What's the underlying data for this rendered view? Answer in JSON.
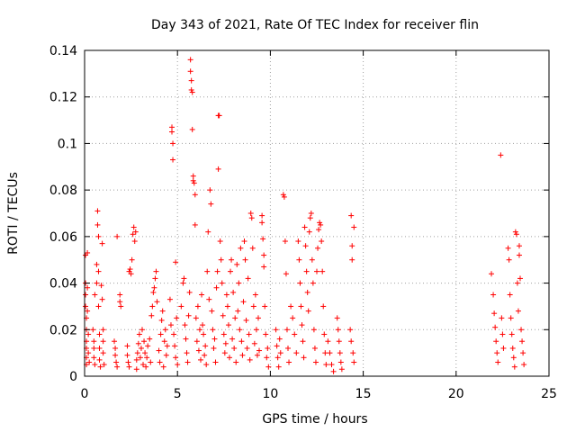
{
  "chart_data": {
    "type": "scatter",
    "title": "Day 343 of 2021, Rate Of TEC Index for receiver flin",
    "xlabel": "GPS time / hours",
    "ylabel": "ROTI / TECUs",
    "xlim": [
      0,
      25
    ],
    "ylim": [
      0,
      0.14
    ],
    "xticks": [
      "0",
      "5",
      "10",
      "15",
      "20",
      "25"
    ],
    "yticks": [
      "0",
      "0.02",
      "0.04",
      "0.06",
      "0.08",
      "0.1",
      "0.12",
      "0.14"
    ],
    "grid": true,
    "marker": "+",
    "color": "#ff0000",
    "series": [
      {
        "points": [
          [
            0.05,
            0.052
          ],
          [
            0.05,
            0.04
          ],
          [
            0.05,
            0.035
          ],
          [
            0.05,
            0.03
          ],
          [
            0.1,
            0.025
          ],
          [
            0.1,
            0.02
          ],
          [
            0.1,
            0.015
          ],
          [
            0.1,
            0.012
          ],
          [
            0.1,
            0.008
          ],
          [
            0.1,
            0.005
          ],
          [
            0.15,
            0.053
          ],
          [
            0.15,
            0.038
          ],
          [
            0.15,
            0.028
          ],
          [
            0.2,
            0.018
          ],
          [
            0.2,
            0.01
          ],
          [
            0.25,
            0.006
          ],
          [
            0.45,
            0.02
          ],
          [
            0.5,
            0.015
          ],
          [
            0.5,
            0.012
          ],
          [
            0.5,
            0.008
          ],
          [
            0.55,
            0.005
          ],
          [
            0.55,
            0.035
          ],
          [
            0.65,
            0.048
          ],
          [
            0.65,
            0.04
          ],
          [
            0.7,
            0.071
          ],
          [
            0.7,
            0.065
          ],
          [
            0.75,
            0.06
          ],
          [
            0.75,
            0.045
          ],
          [
            0.75,
            0.03
          ],
          [
            0.8,
            0.018
          ],
          [
            0.8,
            0.012
          ],
          [
            0.8,
            0.007
          ],
          [
            0.85,
            0.004
          ],
          [
            0.9,
            0.039
          ],
          [
            0.95,
            0.057
          ],
          [
            0.95,
            0.033
          ],
          [
            1.0,
            0.02
          ],
          [
            1.0,
            0.015
          ],
          [
            1.0,
            0.01
          ],
          [
            1.05,
            0.005
          ],
          [
            1.6,
            0.015
          ],
          [
            1.65,
            0.012
          ],
          [
            1.65,
            0.009
          ],
          [
            1.7,
            0.006
          ],
          [
            1.75,
            0.004
          ],
          [
            1.75,
            0.06
          ],
          [
            1.9,
            0.035
          ],
          [
            1.9,
            0.032
          ],
          [
            1.95,
            0.03
          ],
          [
            2.3,
            0.013
          ],
          [
            2.3,
            0.009
          ],
          [
            2.35,
            0.006
          ],
          [
            2.4,
            0.004
          ],
          [
            2.4,
            0.045
          ],
          [
            2.45,
            0.046
          ],
          [
            2.5,
            0.044
          ],
          [
            2.55,
            0.05
          ],
          [
            2.6,
            0.061
          ],
          [
            2.65,
            0.064
          ],
          [
            2.7,
            0.058
          ],
          [
            2.75,
            0.062
          ],
          [
            2.8,
            0.003
          ],
          [
            2.8,
            0.007
          ],
          [
            2.85,
            0.01
          ],
          [
            2.9,
            0.014
          ],
          [
            2.95,
            0.018
          ],
          [
            3.0,
            0.008
          ],
          [
            3.05,
            0.012
          ],
          [
            3.1,
            0.02
          ],
          [
            3.15,
            0.005
          ],
          [
            3.2,
            0.015
          ],
          [
            3.25,
            0.01
          ],
          [
            3.3,
            0.004
          ],
          [
            3.35,
            0.008
          ],
          [
            3.4,
            0.013
          ],
          [
            3.5,
            0.016
          ],
          [
            3.55,
            0.006
          ],
          [
            3.6,
            0.026
          ],
          [
            3.65,
            0.03
          ],
          [
            3.7,
            0.036
          ],
          [
            3.75,
            0.038
          ],
          [
            3.8,
            0.042
          ],
          [
            3.85,
            0.045
          ],
          [
            3.9,
            0.032
          ],
          [
            4.0,
            0.011
          ],
          [
            4.05,
            0.006
          ],
          [
            4.1,
            0.018
          ],
          [
            4.15,
            0.024
          ],
          [
            4.2,
            0.028
          ],
          [
            4.25,
            0.004
          ],
          [
            4.3,
            0.015
          ],
          [
            4.35,
            0.02
          ],
          [
            4.4,
            0.009
          ],
          [
            4.45,
            0.013
          ],
          [
            4.6,
            0.033
          ],
          [
            4.65,
            0.022
          ],
          [
            4.7,
            0.107
          ],
          [
            4.7,
            0.105
          ],
          [
            4.75,
            0.093
          ],
          [
            4.75,
            0.1
          ],
          [
            4.8,
            0.018
          ],
          [
            4.85,
            0.013
          ],
          [
            4.9,
            0.049
          ],
          [
            4.9,
            0.008
          ],
          [
            4.95,
            0.025
          ],
          [
            5.0,
            0.005
          ],
          [
            5.2,
            0.03
          ],
          [
            5.3,
            0.04
          ],
          [
            5.35,
            0.042
          ],
          [
            5.4,
            0.022
          ],
          [
            5.45,
            0.016
          ],
          [
            5.5,
            0.01
          ],
          [
            5.55,
            0.006
          ],
          [
            5.6,
            0.026
          ],
          [
            5.65,
            0.036
          ],
          [
            5.7,
            0.136
          ],
          [
            5.7,
            0.131
          ],
          [
            5.75,
            0.127
          ],
          [
            5.75,
            0.123
          ],
          [
            5.8,
            0.122
          ],
          [
            5.8,
            0.106
          ],
          [
            5.85,
            0.086
          ],
          [
            5.85,
            0.084
          ],
          [
            5.9,
            0.083
          ],
          [
            5.95,
            0.065
          ],
          [
            5.95,
            0.078
          ],
          [
            6.0,
            0.025
          ],
          [
            6.05,
            0.015
          ],
          [
            6.1,
            0.03
          ],
          [
            6.15,
            0.011
          ],
          [
            6.2,
            0.02
          ],
          [
            6.25,
            0.007
          ],
          [
            6.3,
            0.035
          ],
          [
            6.35,
            0.022
          ],
          [
            6.4,
            0.018
          ],
          [
            6.45,
            0.009
          ],
          [
            6.5,
            0.013
          ],
          [
            6.55,
            0.005
          ],
          [
            6.6,
            0.045
          ],
          [
            6.65,
            0.062
          ],
          [
            6.7,
            0.033
          ],
          [
            6.75,
            0.08
          ],
          [
            6.8,
            0.074
          ],
          [
            6.85,
            0.028
          ],
          [
            6.9,
            0.02
          ],
          [
            6.95,
            0.012
          ],
          [
            7.0,
            0.016
          ],
          [
            7.05,
            0.006
          ],
          [
            7.1,
            0.038
          ],
          [
            7.15,
            0.045
          ],
          [
            7.2,
            0.112
          ],
          [
            7.2,
            0.089
          ],
          [
            7.25,
            0.112
          ],
          [
            7.3,
            0.058
          ],
          [
            7.35,
            0.05
          ],
          [
            7.4,
            0.04
          ],
          [
            7.45,
            0.026
          ],
          [
            7.5,
            0.018
          ],
          [
            7.55,
            0.01
          ],
          [
            7.6,
            0.014
          ],
          [
            7.65,
            0.035
          ],
          [
            7.7,
            0.03
          ],
          [
            7.75,
            0.022
          ],
          [
            7.8,
            0.008
          ],
          [
            7.85,
            0.045
          ],
          [
            7.9,
            0.05
          ],
          [
            7.95,
            0.016
          ],
          [
            8.0,
            0.036
          ],
          [
            8.05,
            0.012
          ],
          [
            8.1,
            0.025
          ],
          [
            8.15,
            0.006
          ],
          [
            8.2,
            0.048
          ],
          [
            8.25,
            0.028
          ],
          [
            8.3,
            0.04
          ],
          [
            8.35,
            0.02
          ],
          [
            8.4,
            0.055
          ],
          [
            8.45,
            0.015
          ],
          [
            8.5,
            0.009
          ],
          [
            8.55,
            0.032
          ],
          [
            8.6,
            0.058
          ],
          [
            8.65,
            0.05
          ],
          [
            8.7,
            0.024
          ],
          [
            8.75,
            0.012
          ],
          [
            8.8,
            0.042
          ],
          [
            8.85,
            0.018
          ],
          [
            8.9,
            0.007
          ],
          [
            8.95,
            0.07
          ],
          [
            9.0,
            0.068
          ],
          [
            9.05,
            0.055
          ],
          [
            9.1,
            0.03
          ],
          [
            9.15,
            0.014
          ],
          [
            9.2,
            0.035
          ],
          [
            9.25,
            0.02
          ],
          [
            9.3,
            0.009
          ],
          [
            9.35,
            0.025
          ],
          [
            9.4,
            0.011
          ],
          [
            9.55,
            0.069
          ],
          [
            9.55,
            0.066
          ],
          [
            9.6,
            0.059
          ],
          [
            9.65,
            0.052
          ],
          [
            9.65,
            0.047
          ],
          [
            9.7,
            0.03
          ],
          [
            9.75,
            0.018
          ],
          [
            9.8,
            0.008
          ],
          [
            9.85,
            0.012
          ],
          [
            9.9,
            0.004
          ],
          [
            10.3,
            0.02
          ],
          [
            10.35,
            0.013
          ],
          [
            10.4,
            0.008
          ],
          [
            10.45,
            0.004
          ],
          [
            10.5,
            0.016
          ],
          [
            10.55,
            0.01
          ],
          [
            10.7,
            0.078
          ],
          [
            10.75,
            0.077
          ],
          [
            10.8,
            0.058
          ],
          [
            10.85,
            0.044
          ],
          [
            10.9,
            0.02
          ],
          [
            10.95,
            0.012
          ],
          [
            11.0,
            0.006
          ],
          [
            11.1,
            0.03
          ],
          [
            11.2,
            0.025
          ],
          [
            11.3,
            0.018
          ],
          [
            11.4,
            0.01
          ],
          [
            11.5,
            0.058
          ],
          [
            11.55,
            0.05
          ],
          [
            11.6,
            0.04
          ],
          [
            11.65,
            0.03
          ],
          [
            11.7,
            0.022
          ],
          [
            11.75,
            0.015
          ],
          [
            11.8,
            0.008
          ],
          [
            11.85,
            0.064
          ],
          [
            11.9,
            0.056
          ],
          [
            11.95,
            0.045
          ],
          [
            12.0,
            0.036
          ],
          [
            12.05,
            0.028
          ],
          [
            12.1,
            0.062
          ],
          [
            12.15,
            0.068
          ],
          [
            12.2,
            0.07
          ],
          [
            12.25,
            0.05
          ],
          [
            12.3,
            0.04
          ],
          [
            12.35,
            0.02
          ],
          [
            12.4,
            0.012
          ],
          [
            12.45,
            0.006
          ],
          [
            12.5,
            0.045
          ],
          [
            12.55,
            0.055
          ],
          [
            12.6,
            0.063
          ],
          [
            12.65,
            0.066
          ],
          [
            12.7,
            0.065
          ],
          [
            12.75,
            0.058
          ],
          [
            12.8,
            0.045
          ],
          [
            12.85,
            0.03
          ],
          [
            12.9,
            0.018
          ],
          [
            12.95,
            0.01
          ],
          [
            13.0,
            0.005
          ],
          [
            13.1,
            0.015
          ],
          [
            13.2,
            0.01
          ],
          [
            13.3,
            0.005
          ],
          [
            13.4,
            0.002
          ],
          [
            13.6,
            0.025
          ],
          [
            13.65,
            0.02
          ],
          [
            13.7,
            0.015
          ],
          [
            13.75,
            0.01
          ],
          [
            13.8,
            0.006
          ],
          [
            13.85,
            0.003
          ],
          [
            14.3,
            0.02
          ],
          [
            14.35,
            0.015
          ],
          [
            14.35,
            0.069
          ],
          [
            14.4,
            0.056
          ],
          [
            14.4,
            0.05
          ],
          [
            14.45,
            0.01
          ],
          [
            14.5,
            0.006
          ],
          [
            14.5,
            0.064
          ],
          [
            21.9,
            0.044
          ],
          [
            22.0,
            0.035
          ],
          [
            22.05,
            0.027
          ],
          [
            22.1,
            0.021
          ],
          [
            22.15,
            0.015
          ],
          [
            22.2,
            0.01
          ],
          [
            22.25,
            0.006
          ],
          [
            22.4,
            0.095
          ],
          [
            22.45,
            0.025
          ],
          [
            22.5,
            0.018
          ],
          [
            22.55,
            0.012
          ],
          [
            22.8,
            0.055
          ],
          [
            22.85,
            0.05
          ],
          [
            22.9,
            0.035
          ],
          [
            22.95,
            0.025
          ],
          [
            23.0,
            0.018
          ],
          [
            23.05,
            0.012
          ],
          [
            23.1,
            0.008
          ],
          [
            23.15,
            0.004
          ],
          [
            23.2,
            0.062
          ],
          [
            23.25,
            0.061
          ],
          [
            23.3,
            0.04
          ],
          [
            23.35,
            0.028
          ],
          [
            23.4,
            0.056
          ],
          [
            23.4,
            0.052
          ],
          [
            23.45,
            0.042
          ],
          [
            23.5,
            0.02
          ],
          [
            23.55,
            0.015
          ],
          [
            23.6,
            0.01
          ],
          [
            23.65,
            0.005
          ]
        ]
      }
    ]
  }
}
